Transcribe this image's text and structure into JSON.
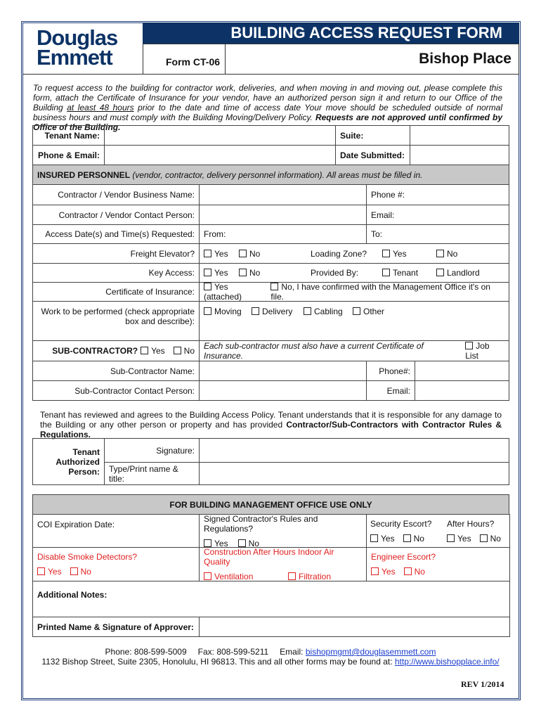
{
  "header": {
    "logo": [
      "Douglas",
      "Emmett"
    ],
    "title": "BUILDING ACCESS REQUEST FORM",
    "form_id": "Form CT-06",
    "property": "Bishop Place"
  },
  "intro": {
    "p1": "To request access to the building for contractor work, deliveries, and when moving in and moving out, please complete this form, attach the Certificate of Insurance for your vendor, have an authorized person sign it and return to our Office of the Building ",
    "u": "at least 48 hours",
    "p2": " prior to the date and time of access date Your move should be scheduled outside of normal business hours and must comply with the Building Moving/Delivery Policy. ",
    "bold": "Requests are not approved until confirmed by Office of the Building."
  },
  "tenant": {
    "name": "Tenant Name:",
    "suite": "Suite:",
    "phone": "Phone & Email:",
    "date": "Date Submitted:"
  },
  "insured": {
    "header_b": "INSURED PERSONNEL",
    "header_i": " (vendor, contractor, delivery personnel information). All areas must be filled in.",
    "biz": "Contractor / Vendor Business Name:",
    "phone": "Phone #:",
    "contact": "Contractor / Vendor Contact Person:",
    "email": "Email:",
    "access": "Access Date(s) and Time(s) Requested:",
    "from": "From:",
    "to": "To:",
    "freight": "Freight Elevator?",
    "yes": "Yes",
    "no": "No",
    "loading": "Loading Zone?",
    "key": "Key Access:",
    "provided": "Provided By:",
    "tenant_opt": "Tenant",
    "landlord": "Landlord",
    "coi": "Certificate of Insurance:",
    "coi_yes": "Yes (attached)",
    "coi_no": "No, I have confirmed with the Management Office it's on file.",
    "work": "Work to be performed (check appropriate box and describe):",
    "moving": "Moving",
    "delivery": "Delivery",
    "cabling": "Cabling",
    "other": "Other",
    "sub": "SUB-CONTRACTOR?",
    "sub_note": "Each sub-contractor must also have a current Certificate of Insurance.",
    "joblist": "Job List",
    "sub_name": "Sub-Contractor Name:",
    "sub_phone": "Phone#:",
    "sub_contact": "Sub-Contractor Contact Person:",
    "sub_email": "Email:"
  },
  "agreement": {
    "p": "Tenant has reviewed and agrees to the Building Access Policy. Tenant understands that it is responsible for any damage to the Building or any other person or property and has provided ",
    "bold": "Contractor/Sub-Contractors with Contractor Rules & Regulations."
  },
  "signature": {
    "auth": "Tenant Authorized Person:",
    "sig": "Signature:",
    "print": "Type/Print name & title:"
  },
  "mgmt": {
    "header": "FOR BUILDING MANAGEMENT OFFICE USE ONLY",
    "coi_exp": "COI Expiration Date:",
    "signed": "Signed Contractor's Rules and Regulations?",
    "security": "Security Escort?",
    "after": "After Hours?",
    "yes": "Yes",
    "no": "No",
    "smoke": "Disable Smoke Detectors?",
    "construction": "Construction After Hours Indoor Air Quality",
    "ventilation": "Ventilation",
    "filtration": "Filtration",
    "engineer": "Engineer Escort?",
    "notes": "Additional Notes:",
    "approver": "Printed Name & Signature of Approver:"
  },
  "footer": {
    "phone": "Phone: 808-599-5009",
    "fax": "Fax: 808-599-5211",
    "email_label": "Email: ",
    "email": "bishopmgmt@douglasemmett.com",
    "address": "1132 Bishop Street, Suite 2305, Honolulu, HI 96813. This and all other forms may be found at: ",
    "url": "http://www.bishopplace.info/",
    "rev": "REV 1/2014"
  },
  "colors": {
    "navy": "#0d3366",
    "red": "#e02020",
    "link": "#1a3ccc"
  }
}
